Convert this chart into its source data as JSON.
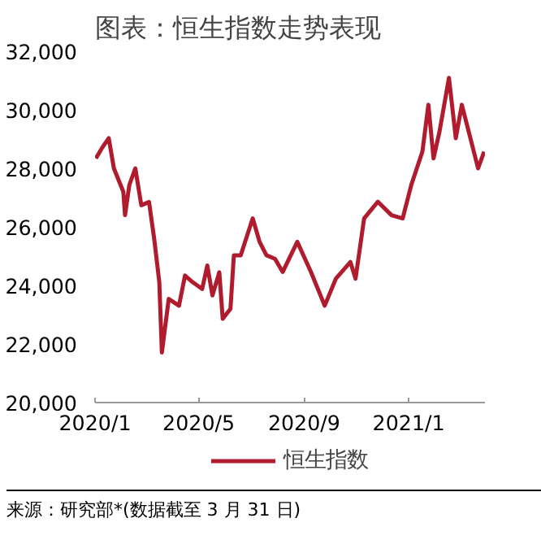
{
  "chart_data": {
    "type": "line",
    "title": "图表：恒生指数走势表现",
    "x": [
      "2020-01-02",
      "2020-01-09",
      "2020-01-17",
      "2020-01-23",
      "2020-02-03",
      "2020-02-05",
      "2020-02-10",
      "2020-02-17",
      "2020-02-24",
      "2020-03-04",
      "2020-03-10",
      "2020-03-16",
      "2020-03-19",
      "2020-03-27",
      "2020-04-08",
      "2020-04-15",
      "2020-04-24",
      "2020-05-05",
      "2020-05-11",
      "2020-05-17",
      "2020-05-25",
      "2020-05-29",
      "2020-06-07",
      "2020-06-11",
      "2020-06-19",
      "2020-07-03",
      "2020-07-11",
      "2020-07-19",
      "2020-07-29",
      "2020-08-07",
      "2020-08-24",
      "2020-09-09",
      "2020-09-25",
      "2020-10-08",
      "2020-10-25",
      "2020-10-31",
      "2020-11-10",
      "2020-11-26",
      "2020-12-12",
      "2020-12-25",
      "2021-01-04",
      "2021-01-17",
      "2021-01-24",
      "2021-01-30",
      "2021-02-06",
      "2021-02-17",
      "2021-02-25",
      "2021-03-04",
      "2021-03-14",
      "2021-03-23",
      "2021-03-30"
    ],
    "series": [
      {
        "name": "恒生指数",
        "color": "#b01c2e",
        "values": [
          28340,
          28690,
          29030,
          28000,
          27200,
          26400,
          27430,
          28000,
          26740,
          26850,
          25600,
          24110,
          21710,
          23540,
          23310,
          24340,
          24110,
          23880,
          24680,
          23660,
          24450,
          22860,
          23200,
          25030,
          25030,
          26290,
          25490,
          25030,
          24910,
          24460,
          25490,
          24460,
          23310,
          24230,
          24800,
          24230,
          26290,
          26860,
          26400,
          26290,
          27430,
          28570,
          30170,
          28340,
          29260,
          31090,
          29030,
          30170,
          29030,
          28000,
          28570
        ]
      }
    ],
    "xlim": [
      "2020-01-01",
      "2021-03-31"
    ],
    "xticks": [
      {
        "value": "2020-01-01",
        "label": "2020/1"
      },
      {
        "value": "2020-05-01",
        "label": "2020/5"
      },
      {
        "value": "2020-09-01",
        "label": "2020/9"
      },
      {
        "value": "2021-01-01",
        "label": "2021/1"
      }
    ],
    "ylim": [
      20000,
      32000
    ],
    "yticks": [
      {
        "value": 20000,
        "label": "20,000"
      },
      {
        "value": 22000,
        "label": "22,000"
      },
      {
        "value": 24000,
        "label": "24,000"
      },
      {
        "value": 26000,
        "label": "26,000"
      },
      {
        "value": 28000,
        "label": "28,000"
      },
      {
        "value": 30000,
        "label": "30,000"
      },
      {
        "value": 32000,
        "label": "32,000"
      }
    ],
    "grid": false,
    "legend": "bottom",
    "line_style": "solid",
    "annotations": [
      "来源：研究部*(数据截至 3 月 31 日)"
    ]
  }
}
